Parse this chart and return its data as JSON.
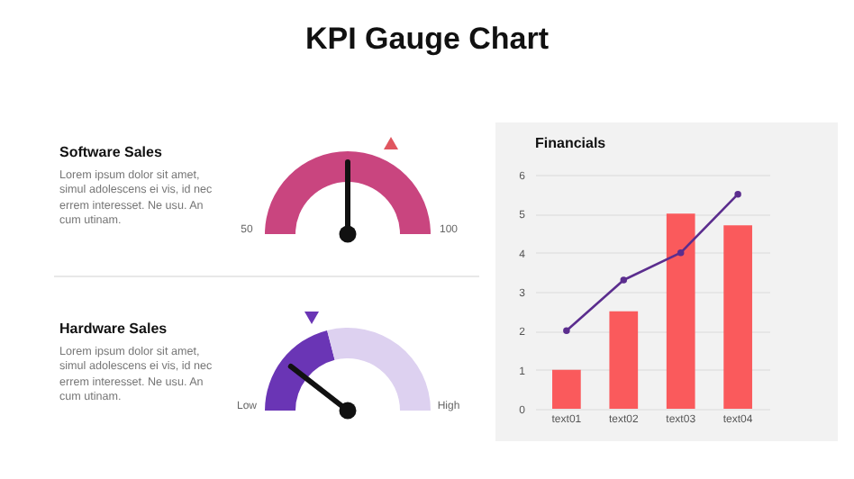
{
  "chart_data": [
    {
      "type": "other",
      "title": "KPI Gauge Chart"
    },
    {
      "type": "pie",
      "title": "Software Sales",
      "subtitle": "Lorem ipsum dolor sit amet, simul adolescens ei vis, id nec errem interesset. Ne usu. An cum utinam.",
      "categories": [
        null
      ],
      "values": [
        100
      ],
      "colors": [
        "#c9457f"
      ],
      "needle": null,
      "annotations": [
        "50",
        "100"
      ]
    },
    {
      "type": "donut",
      "title": "Hardware Sales",
      "subtitle": "Lorem ipsum dolor sit amet, simul adolescens ei vis, id nec errem interesset. Ne usu. An cum utinam.",
      "categories": [
        "Low",
        "High"
      ],
      "values": [
        42,
        58
      ],
      "colors": [
        "#6a35b5",
        "#ddd1f0"
      ],
      "needle": "Low"
    },
    {
      "type": "bar",
      "title": "Financials",
      "categories": [
        "text01",
        "text02",
        "text03",
        "text04"
      ],
      "series": [
        {
          "type": "bar",
          "color": "#fa5a5c",
          "values": [
            1,
            2.5,
            5,
            4.7
          ]
        },
        {
          "type": "line",
          "color": "#5b2d8e",
          "values": [
            2,
            3.3,
            4,
            5.5
          ]
        }
      ],
      "ylim": [
        0,
        6
      ],
      "yticks": [
        0,
        1,
        2,
        3,
        4,
        5,
        6
      ],
      "grid": "y",
      "marker": "circle"
    }
  ]
}
